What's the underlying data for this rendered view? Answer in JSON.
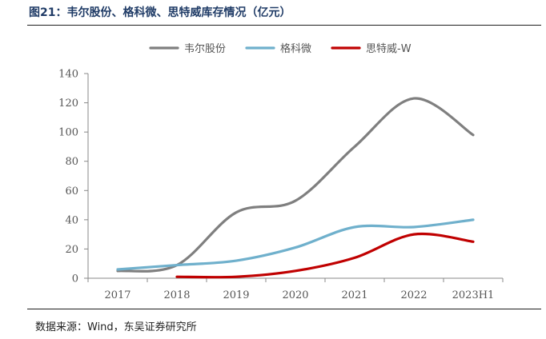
{
  "title": "图21：韦尔股份、格科微、思特威库存情况（亿元）",
  "source": "数据来源：Wind，东吴证券研究所",
  "chart_data": {
    "type": "line",
    "categories": [
      "2017",
      "2018",
      "2019",
      "2020",
      "2021",
      "2022",
      "2023H1"
    ],
    "series": [
      {
        "name": "韦尔股份",
        "color": "#7f7f7f",
        "values": [
          5,
          9,
          45,
          53,
          90,
          123,
          98
        ]
      },
      {
        "name": "格科微",
        "color": "#6fb0cc",
        "values": [
          6,
          9,
          12,
          21,
          35,
          35,
          40
        ]
      },
      {
        "name": "思特威-W",
        "color": "#c00000",
        "values": [
          null,
          1,
          1,
          5,
          14,
          30,
          25
        ]
      }
    ],
    "ylim": [
      0,
      140
    ],
    "yticks": [
      0,
      20,
      40,
      60,
      80,
      100,
      120,
      140
    ],
    "grid": false,
    "legend_position": "top-center"
  }
}
